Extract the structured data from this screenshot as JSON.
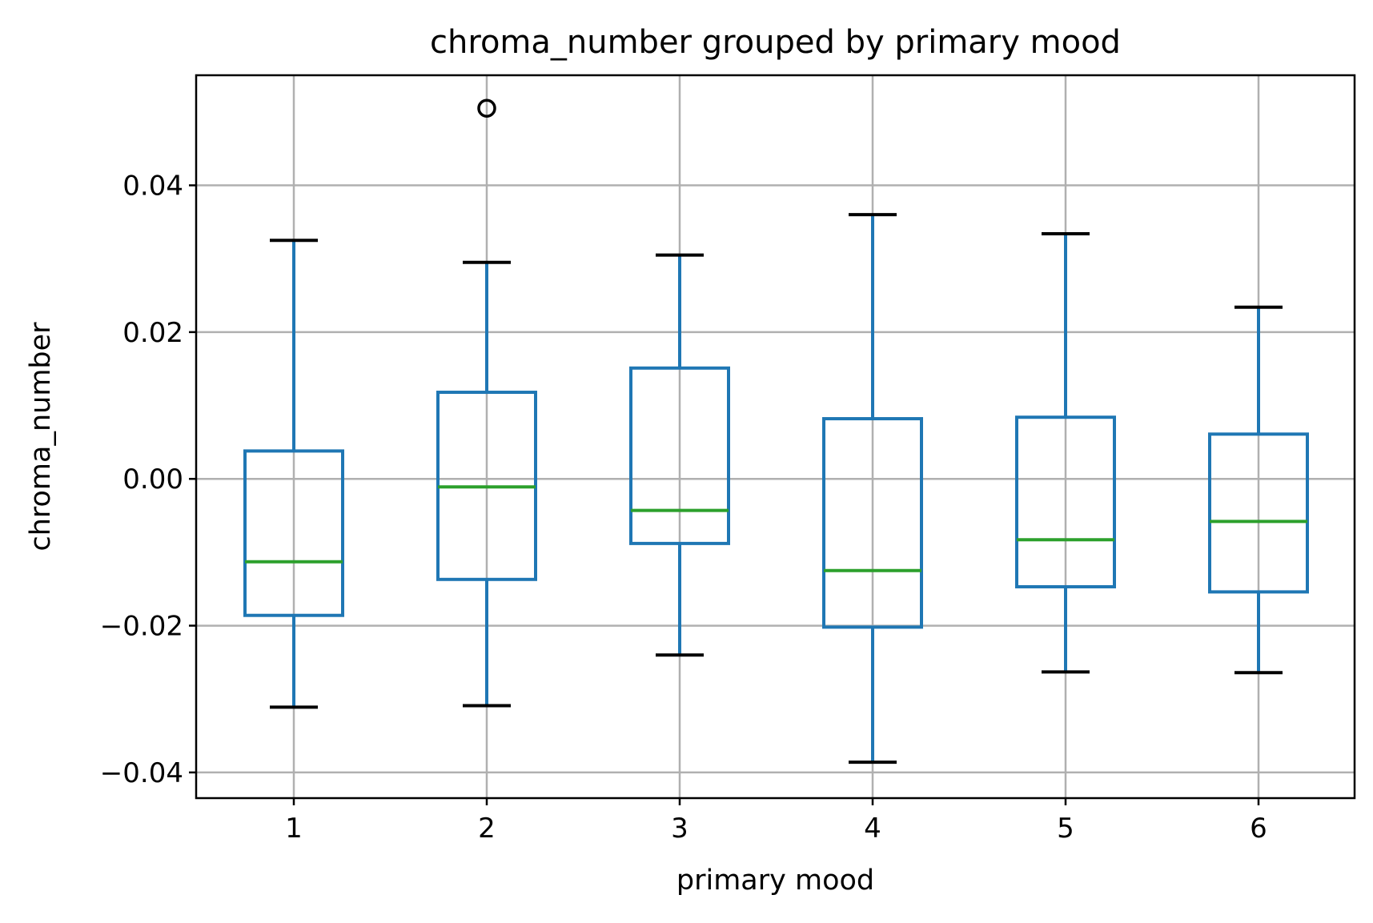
{
  "chart_data": {
    "type": "boxplot",
    "title": "chroma_number grouped by primary mood",
    "xlabel": "primary mood",
    "ylabel": "chroma_number",
    "categories": [
      "1",
      "2",
      "3",
      "4",
      "5",
      "6"
    ],
    "ylim": [
      -0.0435,
      0.055
    ],
    "yticks": [
      -0.04,
      -0.02,
      0.0,
      0.02,
      0.04
    ],
    "ytick_labels": [
      "−0.04",
      "−0.02",
      "0.00",
      "0.02",
      "0.04"
    ],
    "grid": true,
    "boxes": [
      {
        "category": "1",
        "whisker_low": -0.0311,
        "q1": -0.0186,
        "median": -0.0113,
        "q3": 0.0038,
        "whisker_high": 0.0325,
        "outliers": []
      },
      {
        "category": "2",
        "whisker_low": -0.0309,
        "q1": -0.0137,
        "median": -0.0011,
        "q3": 0.0118,
        "whisker_high": 0.0295,
        "outliers": [
          0.0505
        ]
      },
      {
        "category": "3",
        "whisker_low": -0.024,
        "q1": -0.0088,
        "median": -0.0043,
        "q3": 0.0151,
        "whisker_high": 0.0305,
        "outliers": []
      },
      {
        "category": "4",
        "whisker_low": -0.0386,
        "q1": -0.0202,
        "median": -0.0125,
        "q3": 0.0082,
        "whisker_high": 0.036,
        "outliers": []
      },
      {
        "category": "5",
        "whisker_low": -0.0263,
        "q1": -0.0147,
        "median": -0.0083,
        "q3": 0.0084,
        "whisker_high": 0.0334,
        "outliers": []
      },
      {
        "category": "6",
        "whisker_low": -0.0264,
        "q1": -0.0154,
        "median": -0.0058,
        "q3": 0.0061,
        "whisker_high": 0.0234,
        "outliers": []
      }
    ],
    "colors": {
      "box": "#1f77b4",
      "median": "#2ca02c",
      "cap": "#000000",
      "outlier": "#000000",
      "grid": "#b0b0b0",
      "frame": "#000000"
    }
  }
}
